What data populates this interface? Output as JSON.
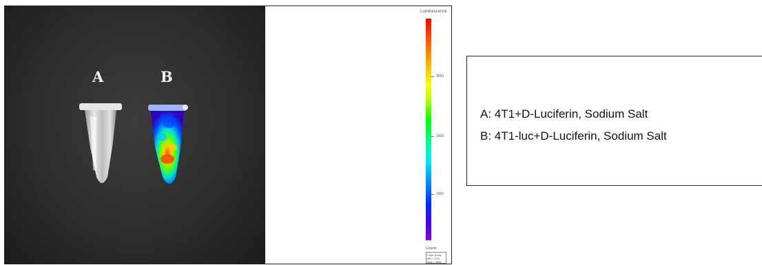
{
  "image": {
    "tube_labels": [
      "A",
      "B"
    ],
    "scale": {
      "title": "Luminescence",
      "ticks": [
        {
          "value": 3000,
          "label": "3000"
        },
        {
          "value": 2000,
          "label": "2000"
        },
        {
          "value": 1000,
          "label": "1000"
        }
      ],
      "units_label": "Counts",
      "color_scale_title": "Color Scale",
      "min_label": "Min = 218",
      "max_label": "Max = 3891",
      "min_value": 218,
      "max_value": 3891,
      "colors": [
        "#ff0000",
        "#ffff00",
        "#00ff00",
        "#00e6ff",
        "#0028ff",
        "#8a00d8"
      ]
    }
  },
  "legend": {
    "line_a": "A: 4T1+D-Luciferin, Sodium Salt",
    "line_b": "B: 4T1-luc+D-Luciferin, Sodium Salt"
  }
}
